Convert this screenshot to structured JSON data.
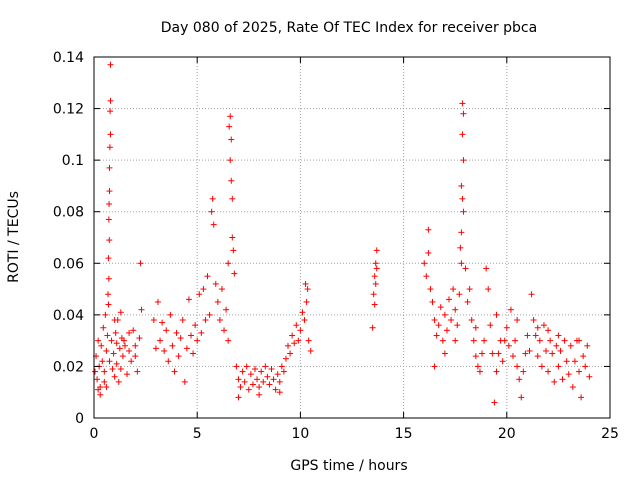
{
  "chart_data": {
    "type": "scatter",
    "title": "Day 080 of 2025, Rate Of TEC Index for receiver pbca",
    "xlabel": "GPS time / hours",
    "ylabel": "ROTI / TECUs",
    "xlim": [
      0,
      25
    ],
    "ylim": [
      0,
      0.14
    ],
    "xticks": [
      "0",
      "5",
      "10",
      "15",
      "20",
      "25"
    ],
    "xtick_values": [
      0,
      5,
      10,
      15,
      20,
      25
    ],
    "yticks": [
      "0",
      "0.02",
      "0.04",
      "0.06",
      "0.08",
      "0.1",
      "0.12",
      "0.14"
    ],
    "ytick_values": [
      0,
      0.02,
      0.04,
      0.06,
      0.08,
      0.1,
      0.12,
      0.14
    ],
    "grid": true,
    "marker": "+",
    "color": "#ff0000",
    "series": [
      {
        "points": [
          [
            0.05,
            0.018
          ],
          [
            0.1,
            0.024
          ],
          [
            0.15,
            0.015
          ],
          [
            0.2,
            0.03
          ],
          [
            0.25,
            0.02
          ],
          [
            0.3,
            0.012
          ],
          [
            0.35,
            0.028
          ],
          [
            0.4,
            0.022
          ],
          [
            0.45,
            0.035
          ],
          [
            0.5,
            0.018
          ],
          [
            0.55,
            0.04
          ],
          [
            0.6,
            0.026
          ],
          [
            0.65,
            0.032
          ],
          [
            0.7,
            0.044
          ],
          [
            0.75,
            0.022
          ],
          [
            0.8,
            0.137
          ],
          [
            0.8,
            0.123
          ],
          [
            0.78,
            0.119
          ],
          [
            0.8,
            0.11
          ],
          [
            0.77,
            0.105
          ],
          [
            0.75,
            0.097
          ],
          [
            0.75,
            0.088
          ],
          [
            0.73,
            0.083
          ],
          [
            0.72,
            0.077
          ],
          [
            0.74,
            0.069
          ],
          [
            0.7,
            0.062
          ],
          [
            0.72,
            0.054
          ],
          [
            0.68,
            0.048
          ],
          [
            0.85,
            0.03
          ],
          [
            0.9,
            0.019
          ],
          [
            0.95,
            0.025
          ],
          [
            1.0,
            0.016
          ],
          [
            1.05,
            0.033
          ],
          [
            1.1,
            0.021
          ],
          [
            1.15,
            0.038
          ],
          [
            1.2,
            0.014
          ],
          [
            1.25,
            0.027
          ],
          [
            1.3,
            0.019
          ],
          [
            1.35,
            0.031
          ],
          [
            1.4,
            0.024
          ],
          [
            1.5,
            0.028
          ],
          [
            1.6,
            0.017
          ],
          [
            1.7,
            0.026
          ],
          [
            1.8,
            0.022
          ],
          [
            1.9,
            0.034
          ],
          [
            2.0,
            0.028
          ],
          [
            2.1,
            0.018
          ],
          [
            2.2,
            0.031
          ],
          [
            2.25,
            0.06
          ],
          [
            2.3,
            0.042
          ],
          [
            0.2,
            0.011
          ],
          [
            0.3,
            0.009
          ],
          [
            0.5,
            0.014
          ],
          [
            0.6,
            0.012
          ],
          [
            1.0,
            0.038
          ],
          [
            1.1,
            0.029
          ],
          [
            1.3,
            0.041
          ],
          [
            1.45,
            0.03
          ],
          [
            1.7,
            0.033
          ],
          [
            2.0,
            0.024
          ],
          [
            2.9,
            0.038
          ],
          [
            3.0,
            0.027
          ],
          [
            3.1,
            0.045
          ],
          [
            3.2,
            0.03
          ],
          [
            3.3,
            0.037
          ],
          [
            3.4,
            0.026
          ],
          [
            3.5,
            0.034
          ],
          [
            3.6,
            0.022
          ],
          [
            3.7,
            0.04
          ],
          [
            3.8,
            0.028
          ],
          [
            3.9,
            0.018
          ],
          [
            4.0,
            0.033
          ],
          [
            4.1,
            0.024
          ],
          [
            4.2,
            0.031
          ],
          [
            4.3,
            0.038
          ],
          [
            4.4,
            0.014
          ],
          [
            4.5,
            0.027
          ],
          [
            4.6,
            0.046
          ],
          [
            4.7,
            0.032
          ],
          [
            4.8,
            0.025
          ],
          [
            4.9,
            0.036
          ],
          [
            5.0,
            0.03
          ],
          [
            5.1,
            0.048
          ],
          [
            5.2,
            0.033
          ],
          [
            5.3,
            0.05
          ],
          [
            5.4,
            0.038
          ],
          [
            5.5,
            0.055
          ],
          [
            5.6,
            0.04
          ],
          [
            5.7,
            0.08
          ],
          [
            5.75,
            0.085
          ],
          [
            5.8,
            0.075
          ],
          [
            5.9,
            0.052
          ],
          [
            6.0,
            0.045
          ],
          [
            6.1,
            0.038
          ],
          [
            6.2,
            0.05
          ],
          [
            6.3,
            0.034
          ],
          [
            6.4,
            0.042
          ],
          [
            6.5,
            0.06
          ],
          [
            6.55,
            0.113
          ],
          [
            6.6,
            0.117
          ],
          [
            6.65,
            0.108
          ],
          [
            6.6,
            0.1
          ],
          [
            6.7,
            0.085
          ],
          [
            6.65,
            0.092
          ],
          [
            6.7,
            0.07
          ],
          [
            6.75,
            0.065
          ],
          [
            6.8,
            0.056
          ],
          [
            6.5,
            0.03
          ],
          [
            6.9,
            0.02
          ],
          [
            7.0,
            0.015
          ],
          [
            7.1,
            0.012
          ],
          [
            7.2,
            0.018
          ],
          [
            7.3,
            0.014
          ],
          [
            7.4,
            0.02
          ],
          [
            7.5,
            0.011
          ],
          [
            7.6,
            0.017
          ],
          [
            7.7,
            0.013
          ],
          [
            7.8,
            0.019
          ],
          [
            7.9,
            0.015
          ],
          [
            8.0,
            0.012
          ],
          [
            8.1,
            0.018
          ],
          [
            8.2,
            0.014
          ],
          [
            8.3,
            0.02
          ],
          [
            8.4,
            0.016
          ],
          [
            8.5,
            0.013
          ],
          [
            8.6,
            0.019
          ],
          [
            8.7,
            0.015
          ],
          [
            8.8,
            0.011
          ],
          [
            8.9,
            0.017
          ],
          [
            9.0,
            0.014
          ],
          [
            9.1,
            0.02
          ],
          [
            9.2,
            0.018
          ],
          [
            9.3,
            0.023
          ],
          [
            9.4,
            0.028
          ],
          [
            9.5,
            0.025
          ],
          [
            9.6,
            0.032
          ],
          [
            9.7,
            0.029
          ],
          [
            9.8,
            0.036
          ],
          [
            9.9,
            0.03
          ],
          [
            10.0,
            0.034
          ],
          [
            10.1,
            0.041
          ],
          [
            10.2,
            0.038
          ],
          [
            10.3,
            0.045
          ],
          [
            10.4,
            0.03
          ],
          [
            10.5,
            0.026
          ],
          [
            10.25,
            0.052
          ],
          [
            10.35,
            0.05
          ],
          [
            7.0,
            0.008
          ],
          [
            8.0,
            0.009
          ],
          [
            9.0,
            0.01
          ],
          [
            13.5,
            0.035
          ],
          [
            13.55,
            0.048
          ],
          [
            13.6,
            0.055
          ],
          [
            13.65,
            0.06
          ],
          [
            13.7,
            0.065
          ],
          [
            13.6,
            0.044
          ],
          [
            13.65,
            0.052
          ],
          [
            13.7,
            0.058
          ],
          [
            16.0,
            0.06
          ],
          [
            16.1,
            0.055
          ],
          [
            16.2,
            0.073
          ],
          [
            16.2,
            0.064
          ],
          [
            16.3,
            0.05
          ],
          [
            16.4,
            0.045
          ],
          [
            16.5,
            0.038
          ],
          [
            16.6,
            0.032
          ],
          [
            16.7,
            0.036
          ],
          [
            16.8,
            0.043
          ],
          [
            16.9,
            0.03
          ],
          [
            17.0,
            0.04
          ],
          [
            17.1,
            0.034
          ],
          [
            17.2,
            0.046
          ],
          [
            17.3,
            0.038
          ],
          [
            17.4,
            0.05
          ],
          [
            17.5,
            0.042
          ],
          [
            17.6,
            0.036
          ],
          [
            17.7,
            0.048
          ],
          [
            17.8,
            0.06
          ],
          [
            17.85,
            0.122
          ],
          [
            17.9,
            0.118
          ],
          [
            17.85,
            0.11
          ],
          [
            17.9,
            0.1
          ],
          [
            17.8,
            0.09
          ],
          [
            17.85,
            0.085
          ],
          [
            17.9,
            0.08
          ],
          [
            17.8,
            0.072
          ],
          [
            17.75,
            0.066
          ],
          [
            18.0,
            0.058
          ],
          [
            18.1,
            0.045
          ],
          [
            18.2,
            0.05
          ],
          [
            18.3,
            0.038
          ],
          [
            18.4,
            0.03
          ],
          [
            18.5,
            0.024
          ],
          [
            18.6,
            0.02
          ],
          [
            18.7,
            0.018
          ],
          [
            18.8,
            0.025
          ],
          [
            18.9,
            0.03
          ],
          [
            19.0,
            0.058
          ],
          [
            19.1,
            0.05
          ],
          [
            19.2,
            0.036
          ],
          [
            19.3,
            0.025
          ],
          [
            19.4,
            0.006
          ],
          [
            19.5,
            0.018
          ],
          [
            19.6,
            0.025
          ],
          [
            19.7,
            0.03
          ],
          [
            19.8,
            0.022
          ],
          [
            19.9,
            0.03
          ],
          [
            20.0,
            0.035
          ],
          [
            20.1,
            0.028
          ],
          [
            20.2,
            0.042
          ],
          [
            20.3,
            0.024
          ],
          [
            20.4,
            0.03
          ],
          [
            20.5,
            0.02
          ],
          [
            20.6,
            0.015
          ],
          [
            20.7,
            0.008
          ],
          [
            20.8,
            0.018
          ],
          [
            20.9,
            0.025
          ],
          [
            21.0,
            0.032
          ],
          [
            21.1,
            0.026
          ],
          [
            21.2,
            0.048
          ],
          [
            21.3,
            0.038
          ],
          [
            21.4,
            0.032
          ],
          [
            21.5,
            0.024
          ],
          [
            21.6,
            0.03
          ],
          [
            21.7,
            0.02
          ],
          [
            21.8,
            0.036
          ],
          [
            21.9,
            0.026
          ],
          [
            22.0,
            0.018
          ],
          [
            22.1,
            0.03
          ],
          [
            22.2,
            0.025
          ],
          [
            22.3,
            0.014
          ],
          [
            22.4,
            0.028
          ],
          [
            22.5,
            0.02
          ],
          [
            22.6,
            0.026
          ],
          [
            22.7,
            0.015
          ],
          [
            22.8,
            0.03
          ],
          [
            22.9,
            0.022
          ],
          [
            23.0,
            0.017
          ],
          [
            23.1,
            0.028
          ],
          [
            23.2,
            0.012
          ],
          [
            23.3,
            0.022
          ],
          [
            23.4,
            0.03
          ],
          [
            23.5,
            0.018
          ],
          [
            23.6,
            0.008
          ],
          [
            23.7,
            0.024
          ],
          [
            23.8,
            0.02
          ],
          [
            23.9,
            0.028
          ],
          [
            24.0,
            0.016
          ],
          [
            16.5,
            0.02
          ],
          [
            17.0,
            0.025
          ],
          [
            17.5,
            0.03
          ],
          [
            18.5,
            0.035
          ],
          [
            19.5,
            0.04
          ],
          [
            20.5,
            0.038
          ],
          [
            21.5,
            0.035
          ],
          [
            22.5,
            0.032
          ],
          [
            23.5,
            0.03
          ],
          [
            22.0,
            0.034
          ]
        ]
      }
    ]
  }
}
